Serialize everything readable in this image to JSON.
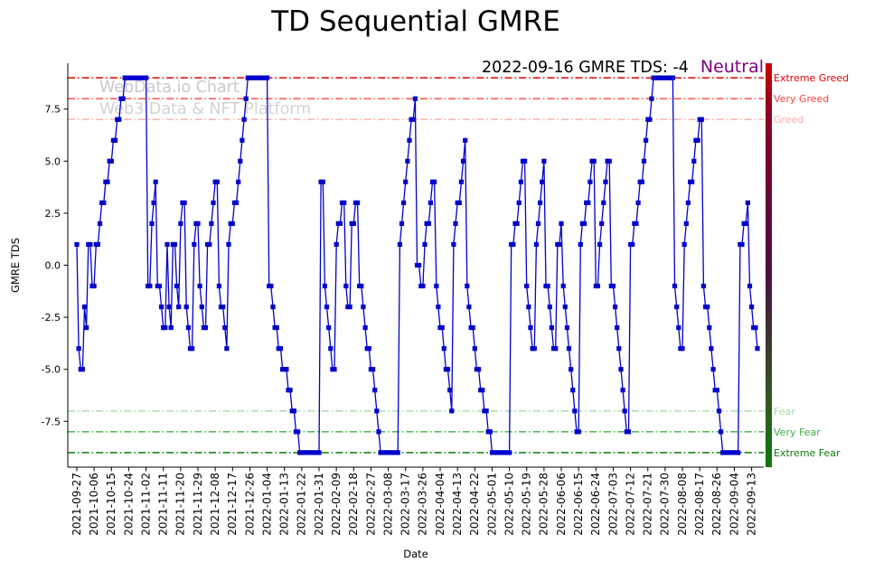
{
  "title": "TD Sequential GMRE",
  "annotation": {
    "label": "2022-09-16 GMRE TDS: -4",
    "status": "Neutral",
    "status_color": "#800080"
  },
  "watermark": {
    "line1": "WebData.io Chart",
    "line2": "Web3 Data & NFT Platform"
  },
  "chart_data": {
    "type": "line",
    "title": "TD Sequential GMRE",
    "xlabel": "Date",
    "ylabel": "GMRE TDS",
    "start_date": "2021-09-27",
    "end_date": "2022-09-16",
    "ylim": [
      -9.7,
      9.7
    ],
    "yticks": [
      -7.5,
      -5.0,
      -2.5,
      0.0,
      2.5,
      5.0,
      7.5
    ],
    "grid": false,
    "legend_position": "none",
    "marker": "square",
    "series_name": "GMRE TDS",
    "series_color": "#0000cd",
    "x_tick_labels": [
      "2021-09-27",
      "2021-10-06",
      "2021-10-15",
      "2021-10-24",
      "2021-11-02",
      "2021-11-11",
      "2021-11-20",
      "2021-11-29",
      "2021-12-08",
      "2021-12-17",
      "2021-12-26",
      "2022-01-04",
      "2022-01-13",
      "2022-01-22",
      "2022-01-31",
      "2022-02-09",
      "2022-02-18",
      "2022-02-27",
      "2022-03-08",
      "2022-03-17",
      "2022-03-26",
      "2022-04-04",
      "2022-04-13",
      "2022-04-22",
      "2022-05-01",
      "2022-05-10",
      "2022-05-19",
      "2022-05-28",
      "2022-06-06",
      "2022-06-15",
      "2022-06-24",
      "2022-07-03",
      "2022-07-12",
      "2022-07-21",
      "2022-07-30",
      "2022-08-08",
      "2022-08-17",
      "2022-08-26",
      "2022-09-04",
      "2022-09-13"
    ],
    "values": [
      1,
      -4,
      -5,
      -5,
      -2,
      -3,
      1,
      1,
      -1,
      -1,
      1,
      1,
      2,
      3,
      3,
      4,
      4,
      5,
      5,
      6,
      6,
      7,
      7,
      8,
      8,
      9,
      9,
      9,
      9,
      9,
      9,
      9,
      9,
      9,
      9,
      9,
      9,
      -1,
      -1,
      2,
      3,
      4,
      -1,
      -1,
      -2,
      -3,
      -3,
      1,
      -2,
      -3,
      1,
      1,
      -1,
      -2,
      2,
      3,
      3,
      -2,
      -3,
      -4,
      -4,
      1,
      2,
      2,
      -1,
      -2,
      -3,
      -3,
      1,
      1,
      2,
      3,
      4,
      4,
      -1,
      -2,
      -2,
      -3,
      -4,
      1,
      2,
      2,
      3,
      3,
      4,
      5,
      6,
      7,
      8,
      9,
      9,
      9,
      9,
      9,
      9,
      9,
      9,
      9,
      9,
      9,
      -1,
      -1,
      -2,
      -3,
      -3,
      -4,
      -4,
      -5,
      -5,
      -5,
      -6,
      -6,
      -7,
      -7,
      -8,
      -8,
      -9,
      -9,
      -9,
      -9,
      -9,
      -9,
      -9,
      -9,
      -9,
      -9,
      -9,
      4,
      4,
      -1,
      -2,
      -3,
      -4,
      -5,
      -5,
      1,
      2,
      2,
      3,
      3,
      -1,
      -2,
      -2,
      2,
      2,
      3,
      3,
      -1,
      -1,
      -2,
      -3,
      -4,
      -4,
      -5,
      -5,
      -6,
      -7,
      -8,
      -9,
      -9,
      -9,
      -9,
      -9,
      -9,
      -9,
      -9,
      -9,
      -9,
      1,
      2,
      3,
      4,
      5,
      6,
      7,
      7,
      8,
      0,
      0,
      -1,
      -1,
      1,
      2,
      2,
      3,
      4,
      4,
      -1,
      -2,
      -3,
      -3,
      -4,
      -5,
      -5,
      -6,
      -7,
      1,
      2,
      3,
      3,
      4,
      5,
      6,
      -1,
      -2,
      -3,
      -3,
      -4,
      -5,
      -5,
      -6,
      -6,
      -7,
      -7,
      -8,
      -8,
      -9,
      -9,
      -9,
      -9,
      -9,
      -9,
      -9,
      -9,
      -9,
      -9,
      1,
      1,
      2,
      2,
      3,
      4,
      5,
      5,
      -1,
      -2,
      -3,
      -4,
      -4,
      1,
      2,
      3,
      4,
      5,
      -1,
      -1,
      -2,
      -3,
      -4,
      -4,
      1,
      1,
      2,
      -1,
      -2,
      -3,
      -4,
      -5,
      -6,
      -7,
      -8,
      -8,
      1,
      2,
      2,
      3,
      3,
      4,
      5,
      5,
      -1,
      -1,
      1,
      2,
      3,
      4,
      5,
      5,
      -1,
      -1,
      -2,
      -3,
      -4,
      -5,
      -6,
      -7,
      -8,
      -8,
      1,
      1,
      2,
      2,
      3,
      4,
      4,
      5,
      6,
      7,
      7,
      8,
      9,
      9,
      9,
      9,
      9,
      9,
      9,
      9,
      9,
      9,
      9,
      -1,
      -2,
      -3,
      -4,
      -4,
      1,
      2,
      3,
      4,
      4,
      5,
      6,
      6,
      7,
      7,
      -1,
      -2,
      -2,
      -3,
      -4,
      -5,
      -6,
      -6,
      -7,
      -8,
      -9,
      -9,
      -9,
      -9,
      -9,
      -9,
      -9,
      -9,
      -9,
      1,
      1,
      2,
      2,
      3,
      -1,
      -2,
      -3,
      -3,
      -4
    ],
    "reference_lines": [
      {
        "label": "Extreme Greed",
        "value": 9,
        "color": "#e60000"
      },
      {
        "label": "Very Greed",
        "value": 8,
        "color": "#ff4040"
      },
      {
        "label": "Greed",
        "value": 7,
        "color": "#ffabab"
      },
      {
        "label": "Fear",
        "value": -7,
        "color": "#a6dba6"
      },
      {
        "label": "Very Fear",
        "value": -8,
        "color": "#3cae3c"
      },
      {
        "label": "Extreme Fear",
        "value": -9,
        "color": "#0a7c0a"
      }
    ],
    "colorbar_gradient": [
      "#cc0000",
      "#8e0022",
      "#4d0a46",
      "#2f5c1e",
      "#0b7a0b"
    ]
  }
}
